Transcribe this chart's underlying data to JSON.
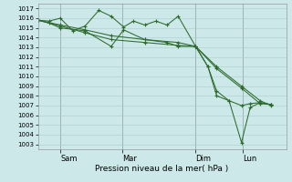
{
  "xlabel": "Pression niveau de la mer( hPa )",
  "ylim": [
    1002.5,
    1017.5
  ],
  "yticks": [
    1003,
    1004,
    1005,
    1006,
    1007,
    1008,
    1009,
    1010,
    1011,
    1012,
    1013,
    1014,
    1015,
    1016,
    1017
  ],
  "background_color": "#cce8e8",
  "grid_color": "#aacccc",
  "line_color": "#2d6b2d",
  "xtick_labels": [
    "Sam",
    "Mar",
    "Dim",
    "Lun"
  ],
  "xtick_positions": [
    0.09,
    0.34,
    0.635,
    0.825
  ],
  "n_total": 100,
  "series": [
    {
      "x_frac": [
        0.0,
        0.045,
        0.09,
        0.14,
        0.19,
        0.245,
        0.295,
        0.345,
        0.385,
        0.43,
        0.475,
        0.52,
        0.565,
        0.635,
        0.685,
        0.72,
        0.77,
        0.82,
        0.855,
        0.895,
        0.94
      ],
      "y": [
        1015.8,
        1015.7,
        1016.0,
        1014.7,
        1015.2,
        1016.8,
        1016.2,
        1015.1,
        1015.7,
        1015.3,
        1015.7,
        1015.3,
        1016.2,
        1013.1,
        1011.0,
        1008.0,
        1007.5,
        1003.2,
        1006.8,
        1007.3,
        1007.1
      ]
    },
    {
      "x_frac": [
        0.0,
        0.045,
        0.09,
        0.19,
        0.295,
        0.345,
        0.43,
        0.52,
        0.565,
        0.635,
        0.685,
        0.72,
        0.77,
        0.82,
        0.855,
        0.895,
        0.94
      ],
      "y": [
        1015.8,
        1015.5,
        1015.0,
        1014.7,
        1013.1,
        1014.8,
        1013.8,
        1013.5,
        1013.1,
        1013.1,
        1011.0,
        1008.5,
        1007.5,
        1007.0,
        1007.2,
        1007.3,
        1007.1
      ]
    },
    {
      "x_frac": [
        0.0,
        0.09,
        0.19,
        0.295,
        0.43,
        0.565,
        0.635,
        0.72,
        0.82,
        0.895,
        0.94
      ],
      "y": [
        1015.8,
        1015.2,
        1014.5,
        1013.8,
        1013.5,
        1013.2,
        1013.1,
        1010.8,
        1008.8,
        1007.2,
        1007.1
      ]
    },
    {
      "x_frac": [
        0.0,
        0.09,
        0.19,
        0.295,
        0.43,
        0.565,
        0.635,
        0.72,
        0.82,
        0.895,
        0.94
      ],
      "y": [
        1015.8,
        1015.3,
        1014.8,
        1014.2,
        1013.8,
        1013.5,
        1013.1,
        1011.0,
        1009.0,
        1007.5,
        1007.0
      ]
    }
  ]
}
